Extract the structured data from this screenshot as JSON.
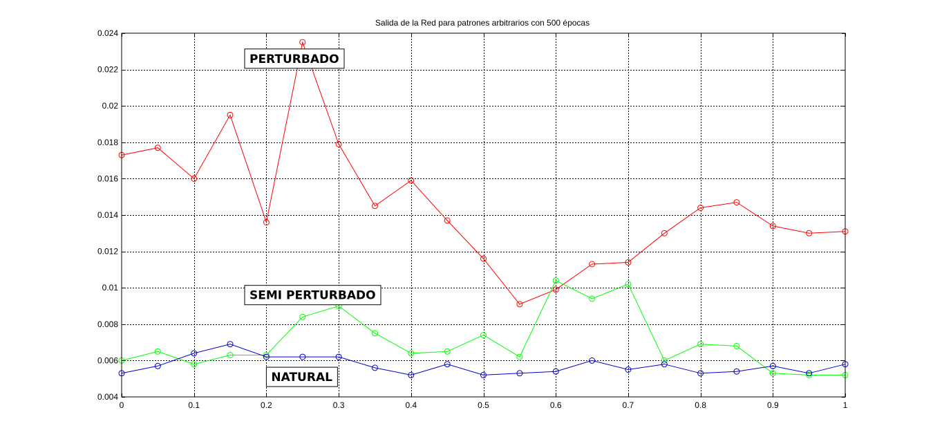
{
  "chart_data": {
    "type": "line",
    "title": "Salida de la Red para patrones arbitrarios con 500 épocas",
    "xlabel": "",
    "ylabel": "",
    "xlim": [
      0,
      1
    ],
    "ylim": [
      0.004,
      0.024
    ],
    "xticks": [
      0,
      0.1,
      0.2,
      0.3,
      0.4,
      0.5,
      0.6,
      0.7,
      0.8,
      0.9,
      1
    ],
    "xtick_labels": [
      "0",
      "0.1",
      "0.2",
      "0.3",
      "0.4",
      "0.5",
      "0.6",
      "0.7",
      "0.8",
      "0.9",
      "1"
    ],
    "yticks": [
      0.004,
      0.006,
      0.008,
      0.01,
      0.012,
      0.014,
      0.016,
      0.018,
      0.02,
      0.022,
      0.024
    ],
    "ytick_labels": [
      "0.004",
      "0.006",
      "0.008",
      "0.01",
      "0.012",
      "0.014",
      "0.016",
      "0.018",
      "0.02",
      "0.022",
      "0.024"
    ],
    "grid": true,
    "marker": "circle",
    "x": [
      0,
      0.05,
      0.1,
      0.15,
      0.2,
      0.25,
      0.3,
      0.35,
      0.4,
      0.45,
      0.5,
      0.55,
      0.6,
      0.65,
      0.7,
      0.75,
      0.8,
      0.85,
      0.9,
      0.95,
      1
    ],
    "series": [
      {
        "color": "#ff0000",
        "values": [
          0.0173,
          0.0177,
          0.016,
          0.0195,
          0.0136,
          0.0235,
          0.0179,
          0.0145,
          0.0159,
          0.0137,
          0.0116,
          0.0091,
          0.0099,
          0.0113,
          0.0114,
          0.013,
          0.0144,
          0.0147,
          0.0134,
          0.013,
          0.0131
        ]
      },
      {
        "color": "#00ff00",
        "values": [
          0.006,
          0.0065,
          0.0058,
          0.0063,
          0.0063,
          0.0084,
          0.009,
          0.0075,
          0.0064,
          0.0065,
          0.0074,
          0.0062,
          0.0104,
          0.0094,
          0.0102,
          0.006,
          0.0069,
          0.0068,
          0.0053,
          0.0052,
          0.0052
        ]
      },
      {
        "color": "#0000cc",
        "values": [
          0.0053,
          0.0057,
          0.0064,
          0.0069,
          0.0062,
          0.0062,
          0.0062,
          0.0056,
          0.0052,
          0.0058,
          0.0052,
          0.0053,
          0.0054,
          0.006,
          0.0055,
          0.0058,
          0.0053,
          0.0054,
          0.0057,
          0.0053,
          0.0058
        ]
      }
    ],
    "annotations": [
      {
        "text": "PERTURBADO",
        "x": 0.17,
        "y": 0.0226
      },
      {
        "text": "SEMI PERTURBADO",
        "x": 0.17,
        "y": 0.0096
      },
      {
        "text": "NATURAL",
        "x": 0.2,
        "y": 0.0051
      }
    ]
  }
}
